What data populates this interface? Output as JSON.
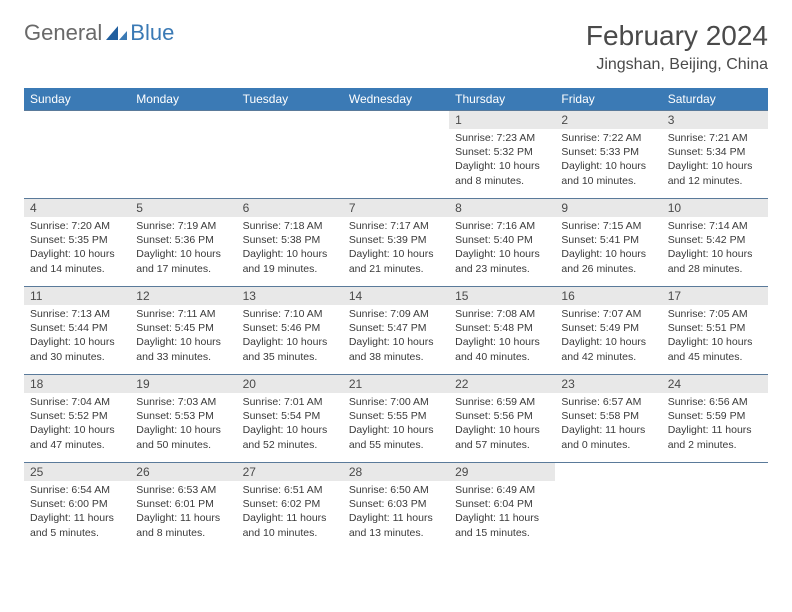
{
  "logo": {
    "part1": "General",
    "part2": "Blue"
  },
  "title": "February 2024",
  "location": "Jingshan, Beijing, China",
  "colors": {
    "header_bg": "#3b7ab5",
    "header_text": "#ffffff",
    "daynum_bg": "#e8e8e8",
    "text": "#4a4a4a",
    "border": "#5a7a9a"
  },
  "days_of_week": [
    "Sunday",
    "Monday",
    "Tuesday",
    "Wednesday",
    "Thursday",
    "Friday",
    "Saturday"
  ],
  "weeks": [
    [
      null,
      null,
      null,
      null,
      {
        "n": "1",
        "sunrise": "7:23 AM",
        "sunset": "5:32 PM",
        "daylight": "10 hours and 8 minutes."
      },
      {
        "n": "2",
        "sunrise": "7:22 AM",
        "sunset": "5:33 PM",
        "daylight": "10 hours and 10 minutes."
      },
      {
        "n": "3",
        "sunrise": "7:21 AM",
        "sunset": "5:34 PM",
        "daylight": "10 hours and 12 minutes."
      }
    ],
    [
      {
        "n": "4",
        "sunrise": "7:20 AM",
        "sunset": "5:35 PM",
        "daylight": "10 hours and 14 minutes."
      },
      {
        "n": "5",
        "sunrise": "7:19 AM",
        "sunset": "5:36 PM",
        "daylight": "10 hours and 17 minutes."
      },
      {
        "n": "6",
        "sunrise": "7:18 AM",
        "sunset": "5:38 PM",
        "daylight": "10 hours and 19 minutes."
      },
      {
        "n": "7",
        "sunrise": "7:17 AM",
        "sunset": "5:39 PM",
        "daylight": "10 hours and 21 minutes."
      },
      {
        "n": "8",
        "sunrise": "7:16 AM",
        "sunset": "5:40 PM",
        "daylight": "10 hours and 23 minutes."
      },
      {
        "n": "9",
        "sunrise": "7:15 AM",
        "sunset": "5:41 PM",
        "daylight": "10 hours and 26 minutes."
      },
      {
        "n": "10",
        "sunrise": "7:14 AM",
        "sunset": "5:42 PM",
        "daylight": "10 hours and 28 minutes."
      }
    ],
    [
      {
        "n": "11",
        "sunrise": "7:13 AM",
        "sunset": "5:44 PM",
        "daylight": "10 hours and 30 minutes."
      },
      {
        "n": "12",
        "sunrise": "7:11 AM",
        "sunset": "5:45 PM",
        "daylight": "10 hours and 33 minutes."
      },
      {
        "n": "13",
        "sunrise": "7:10 AM",
        "sunset": "5:46 PM",
        "daylight": "10 hours and 35 minutes."
      },
      {
        "n": "14",
        "sunrise": "7:09 AM",
        "sunset": "5:47 PM",
        "daylight": "10 hours and 38 minutes."
      },
      {
        "n": "15",
        "sunrise": "7:08 AM",
        "sunset": "5:48 PM",
        "daylight": "10 hours and 40 minutes."
      },
      {
        "n": "16",
        "sunrise": "7:07 AM",
        "sunset": "5:49 PM",
        "daylight": "10 hours and 42 minutes."
      },
      {
        "n": "17",
        "sunrise": "7:05 AM",
        "sunset": "5:51 PM",
        "daylight": "10 hours and 45 minutes."
      }
    ],
    [
      {
        "n": "18",
        "sunrise": "7:04 AM",
        "sunset": "5:52 PM",
        "daylight": "10 hours and 47 minutes."
      },
      {
        "n": "19",
        "sunrise": "7:03 AM",
        "sunset": "5:53 PM",
        "daylight": "10 hours and 50 minutes."
      },
      {
        "n": "20",
        "sunrise": "7:01 AM",
        "sunset": "5:54 PM",
        "daylight": "10 hours and 52 minutes."
      },
      {
        "n": "21",
        "sunrise": "7:00 AM",
        "sunset": "5:55 PM",
        "daylight": "10 hours and 55 minutes."
      },
      {
        "n": "22",
        "sunrise": "6:59 AM",
        "sunset": "5:56 PM",
        "daylight": "10 hours and 57 minutes."
      },
      {
        "n": "23",
        "sunrise": "6:57 AM",
        "sunset": "5:58 PM",
        "daylight": "11 hours and 0 minutes."
      },
      {
        "n": "24",
        "sunrise": "6:56 AM",
        "sunset": "5:59 PM",
        "daylight": "11 hours and 2 minutes."
      }
    ],
    [
      {
        "n": "25",
        "sunrise": "6:54 AM",
        "sunset": "6:00 PM",
        "daylight": "11 hours and 5 minutes."
      },
      {
        "n": "26",
        "sunrise": "6:53 AM",
        "sunset": "6:01 PM",
        "daylight": "11 hours and 8 minutes."
      },
      {
        "n": "27",
        "sunrise": "6:51 AM",
        "sunset": "6:02 PM",
        "daylight": "11 hours and 10 minutes."
      },
      {
        "n": "28",
        "sunrise": "6:50 AM",
        "sunset": "6:03 PM",
        "daylight": "11 hours and 13 minutes."
      },
      {
        "n": "29",
        "sunrise": "6:49 AM",
        "sunset": "6:04 PM",
        "daylight": "11 hours and 15 minutes."
      },
      null,
      null
    ]
  ],
  "labels": {
    "sunrise": "Sunrise:",
    "sunset": "Sunset:",
    "daylight": "Daylight:"
  }
}
